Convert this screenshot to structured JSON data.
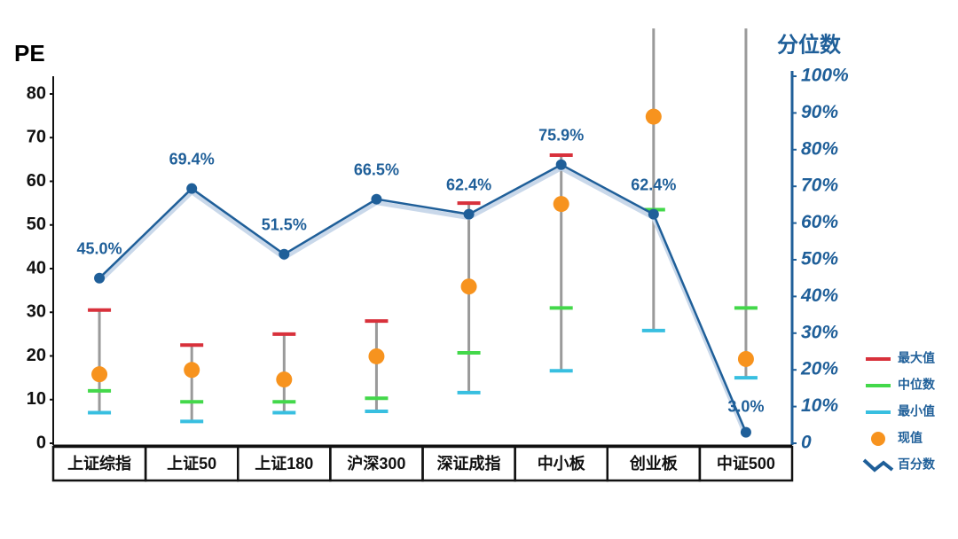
{
  "chart_data": {
    "type": "range",
    "y_label": "PE",
    "y2_label": "分位数",
    "categories": [
      "上证综指",
      "上证50",
      "上证180",
      "沪深300",
      "深证成指",
      "中小板",
      "创业板",
      "中证500"
    ],
    "ylim": [
      0,
      80
    ],
    "yticks": [
      0,
      10,
      20,
      30,
      40,
      50,
      60,
      70,
      80
    ],
    "y2lim": [
      0,
      100
    ],
    "y2ticks": [
      0,
      {
        "value": 10,
        "label": "10%"
      },
      {
        "value": 20,
        "label": "20%"
      },
      {
        "value": 30,
        "label": "30%"
      },
      {
        "value": 40,
        "label": "40%"
      },
      {
        "value": 50,
        "label": "50%"
      },
      {
        "value": 60,
        "label": "60%"
      },
      {
        "value": 70,
        "label": "70%"
      },
      {
        "value": 80,
        "label": "80%"
      },
      {
        "value": 90,
        "label": "90%"
      },
      {
        "value": 100,
        "label": "100%"
      }
    ],
    "series": [
      {
        "name": "最大值",
        "color": "#d8313b",
        "values": [
          30.5,
          22.5,
          25,
          28,
          55,
          66,
          95,
          95
        ]
      },
      {
        "name": "中位数",
        "color": "#43d84a",
        "values": [
          12,
          9.5,
          9.5,
          10.3,
          20.7,
          31,
          53.5,
          31
        ]
      },
      {
        "name": "最小值",
        "color": "#38bfe0",
        "values": [
          7,
          5,
          7,
          7.3,
          11.6,
          16.6,
          25.8,
          15
        ]
      },
      {
        "name": "现值",
        "color": "#f7931e",
        "values": [
          15.8,
          16.8,
          14.6,
          19.9,
          35.9,
          54.8,
          74.8,
          19.3
        ]
      },
      {
        "name": "百分数",
        "color": "#1f5f99",
        "axis": "y2",
        "values": [
          45.0,
          69.4,
          51.5,
          66.5,
          62.4,
          75.9,
          62.4,
          3.0
        ],
        "value_labels": [
          "45.0%",
          "69.4%",
          "51.5%",
          "66.5%",
          "62.4%",
          "75.9%",
          "62.4%",
          "3.0%"
        ]
      }
    ]
  }
}
